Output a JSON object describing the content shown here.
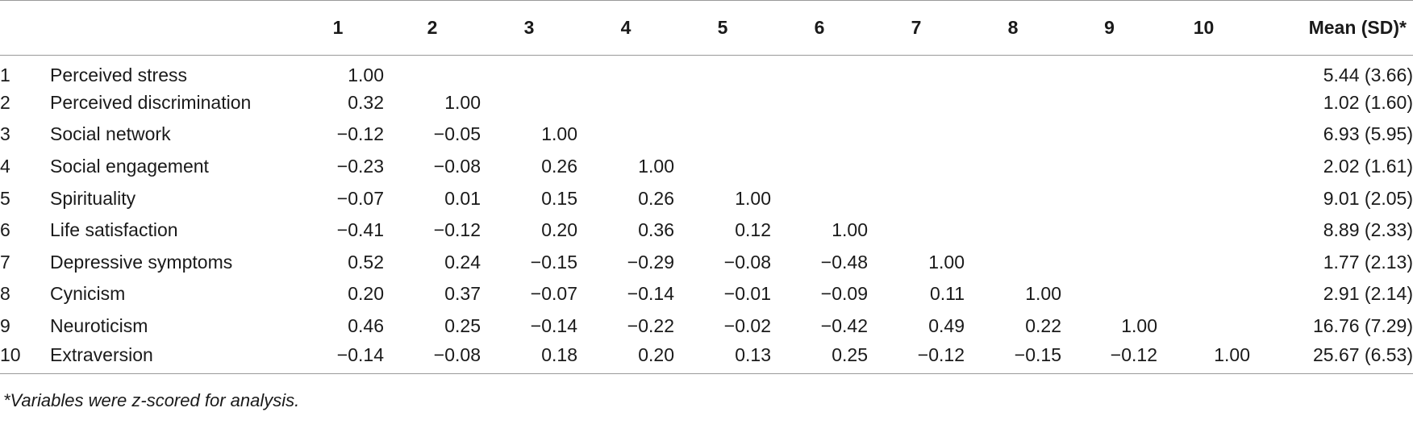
{
  "table": {
    "headers": [
      "1",
      "2",
      "3",
      "4",
      "5",
      "6",
      "7",
      "8",
      "9",
      "10",
      "Mean (SD)*"
    ],
    "rows": [
      {
        "index": "1",
        "variable": "Perceived stress",
        "values": [
          "1.00",
          "",
          "",
          "",
          "",
          "",
          "",
          "",
          "",
          ""
        ],
        "mean": "5.44 (3.66)"
      },
      {
        "index": "2",
        "variable": "Perceived discrimination",
        "values": [
          "0.32",
          "1.00",
          "",
          "",
          "",
          "",
          "",
          "",
          "",
          ""
        ],
        "mean": "1.02 (1.60)"
      },
      {
        "index": "3",
        "variable": "Social network",
        "values": [
          "−0.12",
          "−0.05",
          "1.00",
          "",
          "",
          "",
          "",
          "",
          "",
          ""
        ],
        "mean": "6.93 (5.95)"
      },
      {
        "index": "4",
        "variable": "Social engagement",
        "values": [
          "−0.23",
          "−0.08",
          "0.26",
          "1.00",
          "",
          "",
          "",
          "",
          "",
          ""
        ],
        "mean": "2.02 (1.61)"
      },
      {
        "index": "5",
        "variable": "Spirituality",
        "values": [
          "−0.07",
          "0.01",
          "0.15",
          "0.26",
          "1.00",
          "",
          "",
          "",
          "",
          ""
        ],
        "mean": "9.01 (2.05)"
      },
      {
        "index": "6",
        "variable": "Life satisfaction",
        "values": [
          "−0.41",
          "−0.12",
          "0.20",
          "0.36",
          "0.12",
          "1.00",
          "",
          "",
          "",
          ""
        ],
        "mean": "8.89 (2.33)"
      },
      {
        "index": "7",
        "variable": "Depressive symptoms",
        "values": [
          "0.52",
          "0.24",
          "−0.15",
          "−0.29",
          "−0.08",
          "−0.48",
          "1.00",
          "",
          "",
          ""
        ],
        "mean": "1.77 (2.13)"
      },
      {
        "index": "8",
        "variable": "Cynicism",
        "values": [
          "0.20",
          "0.37",
          "−0.07",
          "−0.14",
          "−0.01",
          "−0.09",
          "0.11",
          "1.00",
          "",
          ""
        ],
        "mean": "2.91 (2.14)"
      },
      {
        "index": "9",
        "variable": "Neuroticism",
        "values": [
          "0.46",
          "0.25",
          "−0.14",
          "−0.22",
          "−0.02",
          "−0.42",
          "0.49",
          "0.22",
          "1.00",
          ""
        ],
        "mean": "16.76 (7.29)"
      },
      {
        "index": "10",
        "variable": "Extraversion",
        "values": [
          "−0.14",
          "−0.08",
          "0.18",
          "0.20",
          "0.13",
          "0.25",
          "−0.12",
          "−0.15",
          "−0.12",
          "1.00"
        ],
        "mean": "25.67 (6.53)"
      }
    ]
  },
  "footnote": "*Variables were z-scored for analysis."
}
